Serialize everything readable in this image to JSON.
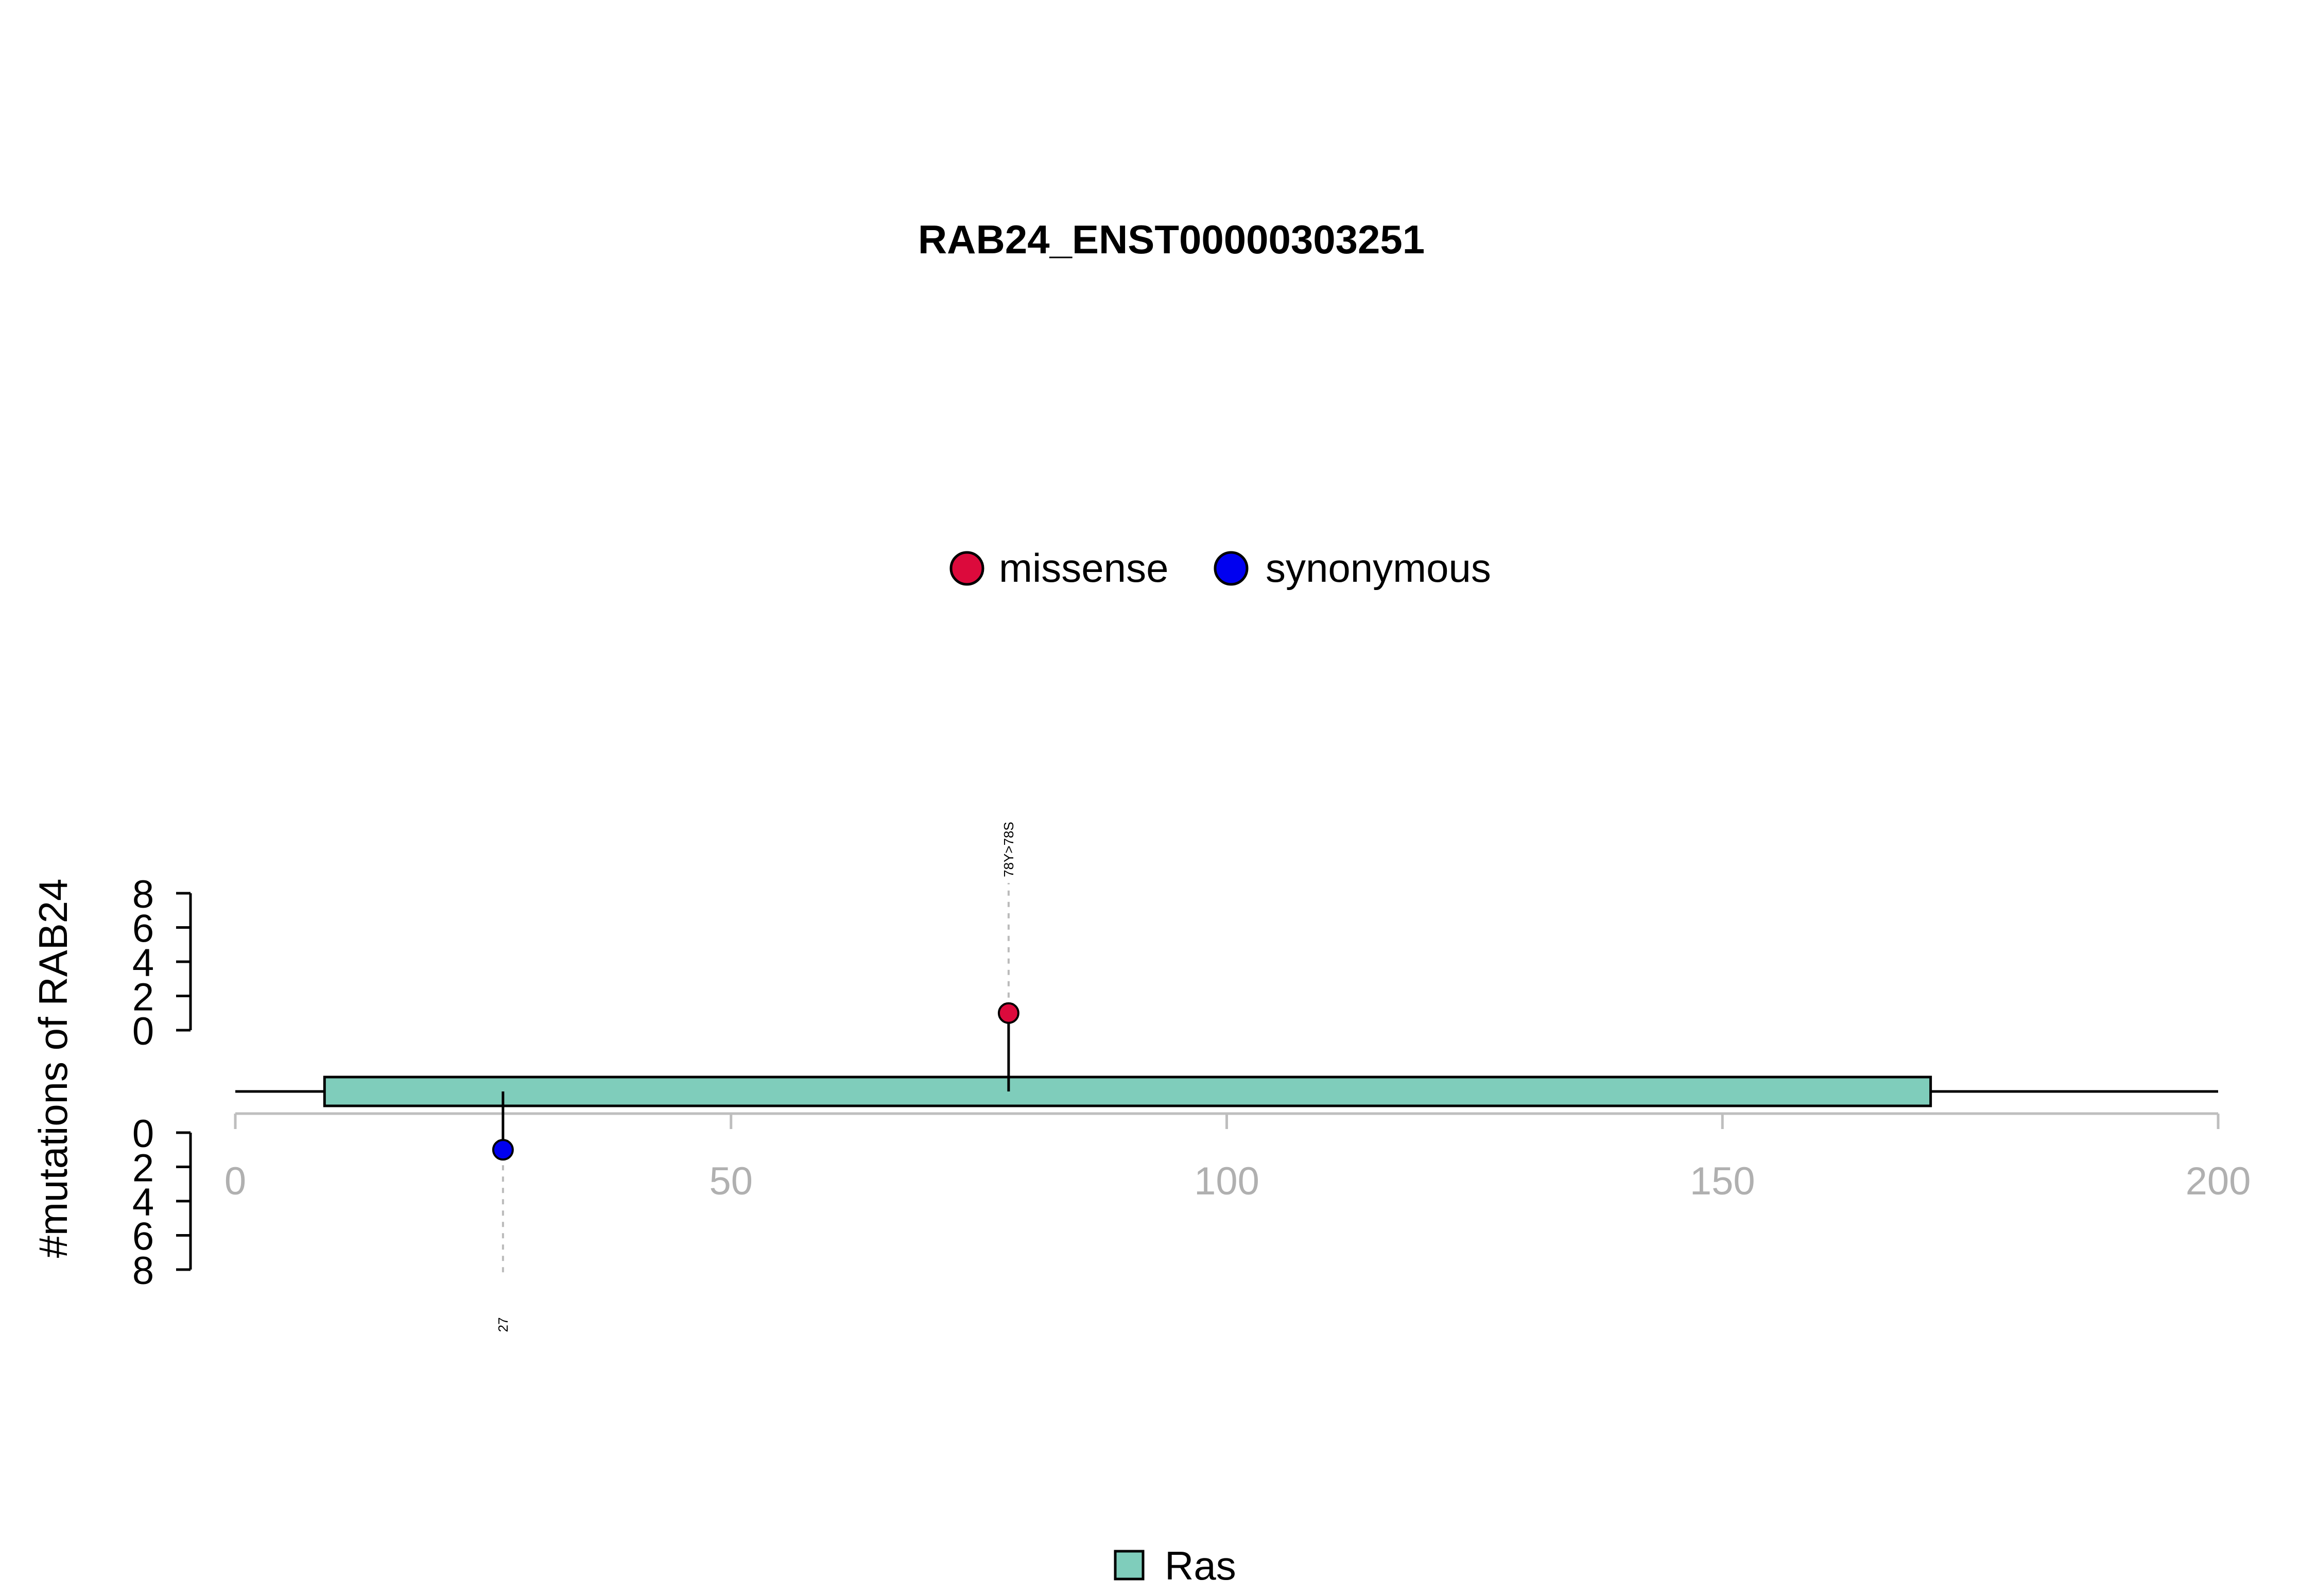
{
  "chart_data": {
    "type": "lollipop",
    "title": "RAB24_ENST00000303251",
    "ylabel": "#mutations of RAB24",
    "x_ticks": [
      0,
      50,
      100,
      150,
      200
    ],
    "xlim": [
      0,
      200
    ],
    "upper_y_ticks": [
      0,
      2,
      4,
      6,
      8
    ],
    "lower_y_ticks": [
      0,
      2,
      4,
      6,
      8
    ],
    "ylim": [
      0,
      8
    ],
    "legend_top": [
      {
        "label": "missense",
        "color": "#DC0A3C"
      },
      {
        "label": "synonymous",
        "color": "#0000F0"
      }
    ],
    "domains": [
      {
        "name": "Ras",
        "start": 9,
        "end": 171,
        "color": "#7FCDBB"
      }
    ],
    "legend_bottom": [
      {
        "label": "Ras",
        "color": "#7FCDBB"
      }
    ],
    "mutations": [
      {
        "position": 78,
        "count": 1,
        "type": "missense",
        "label": "78Y>78S",
        "side": "upper",
        "color": "#DC0A3C"
      },
      {
        "position": 27,
        "count": 1,
        "type": "synonymous",
        "label": "27",
        "side": "lower",
        "color": "#0000F0"
      }
    ]
  }
}
